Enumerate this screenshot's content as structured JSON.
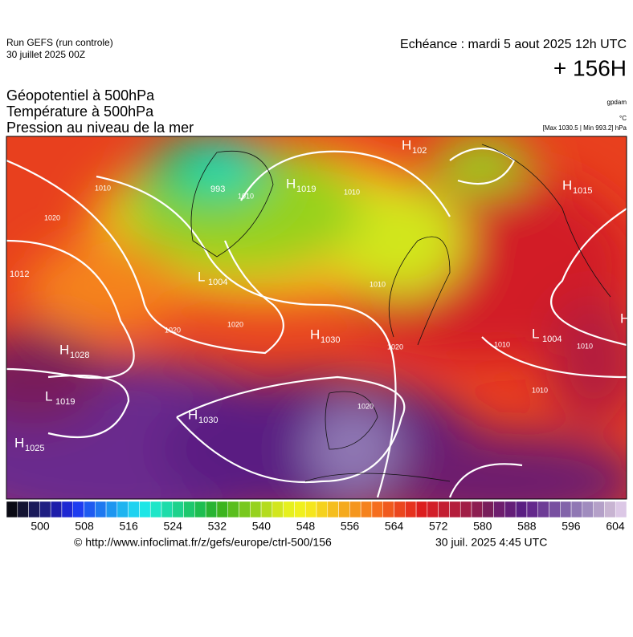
{
  "header": {
    "run": "Run GEFS (run controle)",
    "run_date": "30 juillet 2025 00Z",
    "valid": "Echéance : mardi 5 aout 2025 12h UTC",
    "lead": "+ 156H",
    "titles": [
      "Géopotentiel à 500hPa",
      "Température à 500hPa",
      "Pression au niveau de la mer"
    ],
    "unit_geo": "gpdam",
    "unit_temp": "°C",
    "unit_pressure": "[Max 1030.5 | Min 993.2] hPa"
  },
  "map": {
    "centers": [
      {
        "letter": "H",
        "value": 1028
      },
      {
        "letter": "L",
        "value": 1019
      },
      {
        "letter": "H",
        "value": 1030
      },
      {
        "letter": "H",
        "value": 1025
      },
      {
        "letter": "H",
        "value": 1030
      },
      {
        "letter": "H",
        "value": 1019
      },
      {
        "letter": "L",
        "value": 1004
      },
      {
        "value": 993
      },
      {
        "letter": "H",
        "value": 102
      },
      {
        "letter": "H",
        "value": 1015
      },
      {
        "value": 1012
      },
      {
        "letter": "L",
        "value": 1004
      },
      {
        "letter": "H"
      }
    ],
    "isobar_labels": [
      1010,
      1020,
      1010,
      1010,
      1010,
      1020,
      1020,
      1020,
      1020,
      1010,
      1010,
      1010
    ]
  },
  "colorbar": {
    "ticks": [
      500,
      508,
      516,
      524,
      532,
      540,
      548,
      556,
      564,
      572,
      580,
      588,
      596,
      604
    ],
    "colors": [
      "#0a0a14",
      "#141432",
      "#1a1a5a",
      "#1e1e82",
      "#1e1eaa",
      "#1e28d2",
      "#1e3cf0",
      "#1e5af0",
      "#1e78f0",
      "#1e96f0",
      "#1eb4f0",
      "#1ed2f0",
      "#1ee6e6",
      "#1ee6c8",
      "#1edcaa",
      "#1ed28c",
      "#1ec86e",
      "#1ebe50",
      "#28b432",
      "#3cb41e",
      "#5abe1e",
      "#78c81e",
      "#96d21e",
      "#b4dc1e",
      "#d2e61e",
      "#e6f01e",
      "#f0f01e",
      "#f5e61e",
      "#f5d21e",
      "#f5be1e",
      "#f5aa1e",
      "#f5961e",
      "#f5821e",
      "#f56e1e",
      "#f05a1e",
      "#eb461e",
      "#e6321e",
      "#dc1e1e",
      "#d21e28",
      "#c31e32",
      "#b41e3c",
      "#a01e46",
      "#8c1e50",
      "#781e5a",
      "#6e1e6e",
      "#641e78",
      "#5a1e82",
      "#64288c",
      "#6e3c96",
      "#7850a0",
      "#8264aa",
      "#9078b4",
      "#a08cbe",
      "#b4a0c8",
      "#c8b4d2",
      "#dcc8e6"
    ]
  },
  "footer": {
    "source": "© http://www.infoclimat.fr/z/gefs/europe/ctrl-500/156",
    "issued": "30 juil. 2025  4:45 UTC"
  }
}
